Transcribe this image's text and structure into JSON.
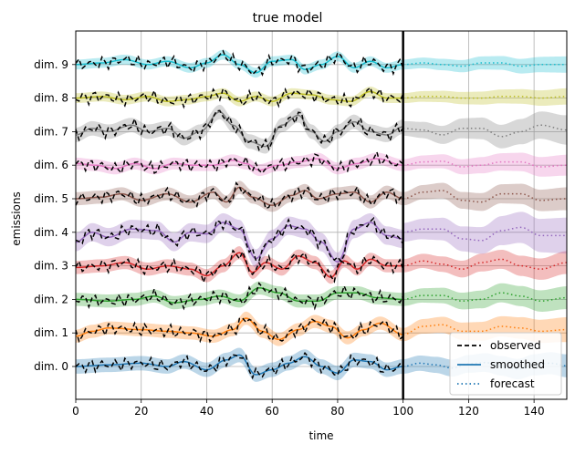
{
  "chart_data": {
    "type": "line",
    "title": "true model",
    "xlabel": "time",
    "ylabel": "emissions",
    "xlim": [
      0,
      150
    ],
    "x_ticks": [
      0,
      20,
      40,
      60,
      80,
      100,
      120,
      140
    ],
    "y_ticks": [
      "dim. 0",
      "dim. 1",
      "dim. 2",
      "dim. 3",
      "dim. 4",
      "dim. 5",
      "dim. 6",
      "dim. 7",
      "dim. 8",
      "dim. 9"
    ],
    "grid": true,
    "observation_end": 100,
    "legend": {
      "position": "lower-right",
      "entries": [
        {
          "label": "observed",
          "style": "dashed",
          "color": "#000000"
        },
        {
          "label": "smoothed",
          "style": "solid",
          "color": "#1f77b4"
        },
        {
          "label": "forecast",
          "style": "dotted",
          "color": "#1f77b4"
        }
      ]
    },
    "series": [
      {
        "dim": 0,
        "color": "#1f77b4",
        "smoothed_x": [
          0,
          10,
          20,
          28,
          33,
          40,
          46,
          50,
          55,
          60,
          65,
          70,
          75,
          80,
          85,
          90,
          95,
          100
        ],
        "smoothed_y": [
          0.0,
          0.05,
          0.1,
          0.0,
          0.15,
          -0.1,
          0.2,
          0.35,
          -0.25,
          -0.1,
          0.1,
          0.3,
          0.0,
          -0.2,
          0.2,
          0.15,
          -0.1,
          0.0
        ],
        "forecast_x": [
          100,
          105,
          110,
          115,
          120,
          125,
          130,
          135,
          140,
          145,
          150
        ],
        "forecast_y": [
          0.0,
          0.1,
          0.05,
          -0.05,
          0.08,
          0.12,
          0.02,
          -0.08,
          0.05,
          0.1,
          0.02
        ],
        "band_obs": 0.22,
        "band_fc": [
          0.22,
          0.35
        ]
      },
      {
        "dim": 1,
        "color": "#ff7f0e",
        "smoothed_x": [
          0,
          5,
          10,
          20,
          28,
          35,
          42,
          48,
          52,
          57,
          62,
          68,
          73,
          78,
          83,
          88,
          93,
          100
        ],
        "smoothed_y": [
          -0.1,
          0.05,
          0.15,
          0.1,
          0.05,
          0.0,
          -0.1,
          0.1,
          0.45,
          0.05,
          -0.2,
          0.1,
          0.35,
          0.2,
          -0.15,
          0.1,
          0.3,
          -0.05
        ],
        "forecast_x": [
          100,
          106,
          112,
          118,
          124,
          130,
          136,
          142,
          150
        ],
        "forecast_y": [
          -0.05,
          0.2,
          0.25,
          0.05,
          0.05,
          0.2,
          0.15,
          0.05,
          0.1
        ],
        "band_obs": 0.2,
        "band_fc": [
          0.2,
          0.38
        ]
      },
      {
        "dim": 2,
        "color": "#2ca02c",
        "smoothed_x": [
          0,
          10,
          18,
          24,
          30,
          38,
          44,
          50,
          56,
          62,
          68,
          74,
          80,
          86,
          92,
          100
        ],
        "smoothed_y": [
          0.0,
          -0.05,
          0.0,
          0.1,
          -0.1,
          0.0,
          0.1,
          -0.05,
          0.35,
          0.2,
          -0.05,
          -0.05,
          0.2,
          0.2,
          0.05,
          0.0
        ],
        "forecast_x": [
          100,
          106,
          112,
          118,
          124,
          130,
          136,
          142,
          150
        ],
        "forecast_y": [
          0.0,
          0.12,
          0.12,
          -0.05,
          0.0,
          0.2,
          0.1,
          -0.05,
          0.05
        ],
        "band_obs": 0.2,
        "band_fc": [
          0.2,
          0.35
        ]
      },
      {
        "dim": 3,
        "color": "#d62728",
        "smoothed_x": [
          0,
          8,
          15,
          22,
          28,
          35,
          40,
          45,
          50,
          54,
          58,
          63,
          68,
          73,
          78,
          82,
          86,
          90,
          95,
          100
        ],
        "smoothed_y": [
          -0.05,
          0.0,
          0.1,
          -0.1,
          0.0,
          -0.1,
          -0.3,
          0.0,
          0.4,
          -0.2,
          0.1,
          -0.1,
          0.3,
          0.1,
          -0.35,
          0.15,
          -0.1,
          0.2,
          0.0,
          0.0
        ],
        "forecast_x": [
          100,
          106,
          112,
          118,
          124,
          130,
          136,
          142,
          150
        ],
        "forecast_y": [
          0.0,
          0.15,
          0.05,
          -0.1,
          0.1,
          0.2,
          0.0,
          -0.1,
          0.1
        ],
        "band_obs": 0.2,
        "band_fc": [
          0.2,
          0.35
        ]
      },
      {
        "dim": 4,
        "color": "#9467bd",
        "smoothed_x": [
          0,
          5,
          10,
          17,
          25,
          30,
          35,
          40,
          45,
          50,
          55,
          60,
          65,
          70,
          75,
          80,
          85,
          90,
          95,
          100
        ],
        "smoothed_y": [
          -0.3,
          0.0,
          -0.15,
          0.1,
          0.05,
          -0.3,
          0.0,
          -0.05,
          0.3,
          0.1,
          -0.8,
          -0.2,
          0.2,
          0.1,
          -0.3,
          -0.9,
          0.1,
          0.3,
          -0.1,
          -0.2
        ],
        "forecast_x": [
          100,
          106,
          112,
          118,
          124,
          130,
          136,
          142,
          150
        ],
        "forecast_y": [
          0.0,
          0.1,
          0.1,
          -0.2,
          -0.25,
          0.05,
          0.15,
          -0.1,
          -0.1
        ],
        "band_obs": 0.28,
        "band_fc": [
          0.28,
          0.55
        ]
      },
      {
        "dim": 5,
        "color": "#8c564b",
        "smoothed_x": [
          0,
          8,
          14,
          20,
          28,
          35,
          42,
          46,
          50,
          54,
          60,
          66,
          70,
          74,
          80,
          85,
          90,
          95,
          100
        ],
        "smoothed_y": [
          0.0,
          0.05,
          0.15,
          -0.05,
          0.15,
          -0.1,
          0.2,
          -0.1,
          0.35,
          0.05,
          -0.2,
          0.1,
          0.25,
          0.0,
          0.15,
          0.2,
          -0.1,
          0.2,
          0.0
        ],
        "forecast_x": [
          100,
          106,
          112,
          118,
          124,
          130,
          136,
          142,
          150
        ],
        "forecast_y": [
          0.0,
          0.2,
          0.25,
          -0.05,
          -0.1,
          0.15,
          0.15,
          -0.05,
          0.0
        ],
        "band_obs": 0.2,
        "band_fc": [
          0.2,
          0.35
        ]
      },
      {
        "dim": 6,
        "color": "#e377c2",
        "smoothed_x": [
          0,
          6,
          12,
          18,
          24,
          30,
          36,
          42,
          48,
          52,
          56,
          62,
          68,
          74,
          80,
          86,
          92,
          100
        ],
        "smoothed_y": [
          0.05,
          0.0,
          -0.1,
          0.05,
          -0.1,
          0.05,
          0.0,
          0.0,
          0.15,
          0.05,
          -0.15,
          0.0,
          0.1,
          0.2,
          -0.1,
          0.05,
          0.2,
          0.0
        ],
        "forecast_x": [
          100,
          106,
          112,
          118,
          124,
          130,
          136,
          142,
          150
        ],
        "forecast_y": [
          0.0,
          0.1,
          0.12,
          -0.05,
          0.0,
          0.1,
          0.1,
          -0.05,
          0.0
        ],
        "band_obs": 0.18,
        "band_fc": [
          0.18,
          0.32
        ]
      },
      {
        "dim": 7,
        "color": "#7f7f7f",
        "smoothed_x": [
          0,
          5,
          10,
          17,
          22,
          28,
          33,
          38,
          44,
          48,
          53,
          58,
          63,
          68,
          72,
          76,
          80,
          85,
          90,
          95,
          100
        ],
        "smoothed_y": [
          -0.1,
          0.1,
          0.0,
          0.2,
          0.0,
          0.1,
          -0.2,
          0.0,
          0.6,
          0.2,
          -0.3,
          -0.45,
          0.2,
          0.5,
          0.0,
          -0.3,
          0.0,
          0.3,
          0.0,
          -0.1,
          0.15
        ],
        "forecast_x": [
          100,
          106,
          112,
          118,
          124,
          130,
          136,
          142,
          150
        ],
        "forecast_y": [
          0.1,
          0.05,
          -0.1,
          0.1,
          0.1,
          -0.15,
          0.0,
          0.2,
          0.05
        ],
        "band_obs": 0.22,
        "band_fc": [
          0.22,
          0.45
        ]
      },
      {
        "dim": 8,
        "color": "#bcbd22",
        "smoothed_x": [
          0,
          8,
          15,
          22,
          28,
          34,
          40,
          45,
          50,
          55,
          60,
          66,
          72,
          78,
          84,
          90,
          95,
          100
        ],
        "smoothed_y": [
          0.0,
          0.05,
          -0.05,
          0.05,
          -0.1,
          -0.05,
          0.05,
          0.15,
          -0.1,
          0.05,
          -0.1,
          0.15,
          0.1,
          -0.05,
          -0.1,
          0.2,
          0.0,
          0.0
        ],
        "forecast_x": [
          100,
          106,
          112,
          118,
          124,
          130,
          136,
          142,
          150
        ],
        "forecast_y": [
          0.0,
          0.05,
          0.05,
          0.0,
          0.0,
          0.05,
          0.05,
          0.0,
          0.05
        ],
        "band_obs": 0.15,
        "band_fc": [
          0.15,
          0.25
        ]
      },
      {
        "dim": 9,
        "color": "#17becf",
        "smoothed_x": [
          0,
          8,
          15,
          22,
          28,
          35,
          40,
          45,
          50,
          55,
          60,
          66,
          70,
          75,
          80,
          85,
          90,
          95,
          100
        ],
        "smoothed_y": [
          0.0,
          0.05,
          0.15,
          0.0,
          0.1,
          -0.1,
          0.05,
          0.3,
          0.0,
          -0.25,
          0.1,
          0.15,
          -0.15,
          0.0,
          0.25,
          -0.1,
          0.1,
          -0.1,
          0.0
        ],
        "forecast_x": [
          100,
          106,
          112,
          118,
          124,
          130,
          136,
          142,
          150
        ],
        "forecast_y": [
          0.0,
          0.05,
          0.0,
          -0.05,
          0.05,
          0.05,
          -0.05,
          0.0,
          0.0
        ],
        "band_obs": 0.15,
        "band_fc": [
          0.15,
          0.25
        ]
      }
    ]
  }
}
